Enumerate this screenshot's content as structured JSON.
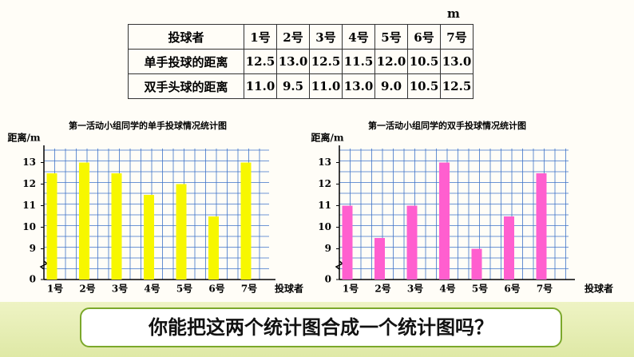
{
  "unit": "m",
  "table": {
    "header": [
      "投球者",
      "1号",
      "2号",
      "3号",
      "4号",
      "5号",
      "6号",
      "7号"
    ],
    "rows": [
      [
        "单手投球的距离",
        "12.5",
        "13.0",
        "12.5",
        "11.5",
        "12.0",
        "10.5",
        "13.0"
      ],
      [
        "双手头球的距离",
        "11.0",
        "9.5",
        "11.0",
        "13.0",
        "9.0",
        "10.5",
        "12.5"
      ]
    ]
  },
  "chart_data": [
    {
      "type": "bar",
      "title": "第一活动小组同学的单手投球情况统计图",
      "y_label": "距离/m",
      "x_label": "投球者",
      "categories": [
        "1号",
        "2号",
        "3号",
        "4号",
        "5号",
        "6号",
        "7号"
      ],
      "values": [
        12.5,
        13,
        12.5,
        11.5,
        12,
        10.5,
        13
      ],
      "color": "#f7f700",
      "ylim": [
        8.5,
        13.5
      ],
      "yticks": [
        0,
        9,
        10,
        11,
        12,
        13
      ],
      "axis_break": true,
      "grid": true
    },
    {
      "type": "bar",
      "title": "第一活动小组同学的双手投球情况统计图",
      "y_label": "距离/m",
      "x_label": "投球者",
      "categories": [
        "1号",
        "2号",
        "3号",
        "4号",
        "5号",
        "6号",
        "7号"
      ],
      "values": [
        11,
        9.5,
        11,
        13,
        9,
        10.5,
        12.5
      ],
      "color": "#ff5fcf",
      "ylim": [
        8.5,
        13.5
      ],
      "yticks": [
        0,
        9,
        10,
        11,
        12,
        13
      ],
      "axis_break": true,
      "grid": true
    }
  ],
  "question": "你能把这两个统计图合成一个统计图吗？"
}
